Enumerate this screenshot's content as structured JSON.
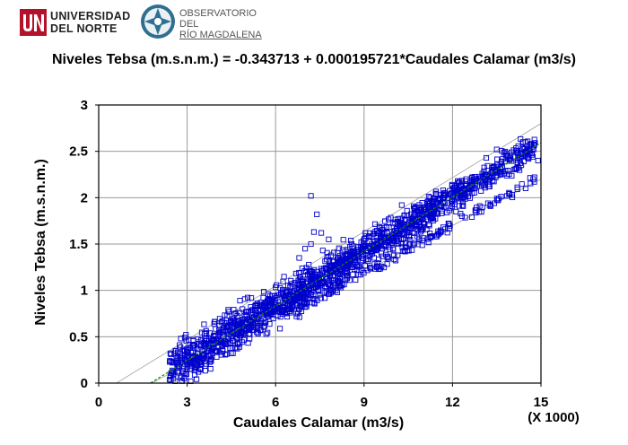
{
  "logos": {
    "university_line1": "UNIVERSIDAD",
    "university_line2": "DEL NORTE",
    "observatory_line1": "OBSERVATORIO DEL",
    "observatory_line2": "RÍO MAGDALENA"
  },
  "chart_data": {
    "type": "scatter",
    "title": "Niveles Tebsa (m.s.n.m.) = -0.343713 + 0.000195721*Caudales Calamar (m3/s)",
    "xlabel": "Caudales Calamar (m3/s)",
    "ylabel": "Niveles Tebsa (m.s.n.m.)",
    "x_multiplier_label": "(X 1000)",
    "xlim": [
      0,
      15
    ],
    "ylim": [
      0,
      3
    ],
    "xticks": [
      0,
      3,
      6,
      9,
      12,
      15
    ],
    "yticks": [
      0,
      0.5,
      1,
      1.5,
      2,
      2.5,
      3
    ],
    "xtick_labels": [
      "0",
      "3",
      "6",
      "9",
      "12",
      "15"
    ],
    "ytick_labels": [
      "0",
      "0.5",
      "1",
      "1.5",
      "2",
      "2.5",
      "3"
    ],
    "grid": true,
    "regression": {
      "intercept": -0.343713,
      "slope": 0.195721,
      "x_range": [
        1.76,
        15
      ]
    },
    "prediction_limits": {
      "x_range": [
        0.6,
        15
      ],
      "upper": [
        0.0,
        2.8
      ],
      "lower": [
        0.0,
        2.2
      ]
    },
    "series": [
      {
        "marker": "open-square",
        "color": "#0000cc",
        "clusters": [
          {
            "x_range": [
              2.4,
              3.6
            ],
            "y_center_intercept": -0.34,
            "slope": 0.1957,
            "spread": 0.12,
            "count": 160
          },
          {
            "x_range": [
              3.6,
              7.0
            ],
            "y_center_intercept": -0.34,
            "slope": 0.1957,
            "spread": 0.11,
            "count": 520
          },
          {
            "x_range": [
              7.0,
              11.5
            ],
            "y_center_intercept": -0.34,
            "slope": 0.1957,
            "spread": 0.09,
            "count": 620
          },
          {
            "x_range": [
              11.5,
              14.8
            ],
            "y_center_intercept": -0.34,
            "slope": 0.1957,
            "spread": 0.07,
            "count": 280
          }
        ],
        "lower_branch": {
          "x_range": [
            6.8,
            14.8
          ],
          "y_start": 0.8,
          "y_end": 2.2,
          "count": 140
        },
        "outliers": [
          [
            7.2,
            2.02
          ],
          [
            7.4,
            1.82
          ],
          [
            7.3,
            1.63
          ],
          [
            7.55,
            1.62
          ],
          [
            7.8,
            1.55
          ],
          [
            7.2,
            1.5
          ],
          [
            7.0,
            1.45
          ],
          [
            7.6,
            1.43
          ],
          [
            6.8,
            1.35
          ],
          [
            14.2,
            2.48
          ],
          [
            14.7,
            2.55
          ],
          [
            14.9,
            2.4
          ],
          [
            13.5,
            2.52
          ],
          [
            2.6,
            0.02
          ],
          [
            2.9,
            0.05
          ]
        ]
      }
    ]
  }
}
